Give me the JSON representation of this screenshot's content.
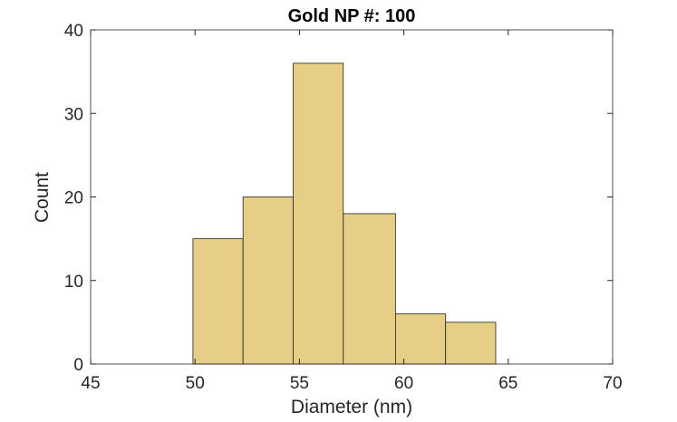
{
  "chart_data": {
    "type": "histogram",
    "title": "Gold NP #: 100",
    "x_label": "Diameter (nm)",
    "y_label": "Count",
    "bins": [
      49.9,
      52.3,
      54.7,
      57.1,
      59.6,
      62.0,
      64.4
    ],
    "values": [
      15,
      20,
      36,
      18,
      6,
      5
    ],
    "color": "#e6cf85",
    "xlim": [
      45,
      70
    ],
    "xticks": [
      45,
      50,
      55,
      60,
      65,
      70
    ],
    "ylim": [
      0,
      40
    ],
    "yticks": [
      0,
      10,
      20,
      30,
      40
    ],
    "grid": false
  }
}
